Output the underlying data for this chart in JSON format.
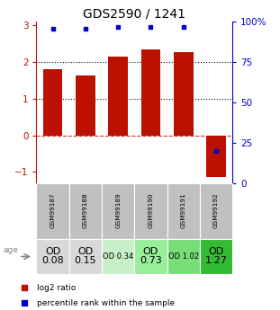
{
  "title": "GDS2590 / 1241",
  "samples": [
    "GSM99187",
    "GSM99188",
    "GSM99189",
    "GSM99190",
    "GSM99191",
    "GSM99192"
  ],
  "log2_ratios": [
    1.8,
    1.62,
    2.15,
    2.35,
    2.28,
    -1.15
  ],
  "percentile_y_vals": [
    2.9,
    2.9,
    2.95,
    2.95,
    2.95,
    -0.42
  ],
  "bar_color": "#bb1100",
  "dot_color": "#0000cc",
  "ylim": [
    -1.3,
    3.1
  ],
  "yticks_left": [
    -1,
    0,
    1,
    2,
    3
  ],
  "hline_vals": [
    0,
    1,
    2
  ],
  "hline_styles": [
    "--",
    ":",
    ":"
  ],
  "hline_colors": [
    "#cc3333",
    "#111111",
    "#111111"
  ],
  "od_texts": [
    "OD\n0.08",
    "OD\n0.15",
    "OD 0.34",
    "OD\n0.73",
    "OD 1.02",
    "OD\n1.27"
  ],
  "od_fontsize": [
    8,
    8,
    6,
    8,
    6,
    8
  ],
  "od_bg_colors": [
    "#d8d8d8",
    "#d8d8d8",
    "#c8f0c8",
    "#99ee99",
    "#77dd77",
    "#33bb33"
  ],
  "sample_bg_color": "#c0c0c0",
  "sample_border_color": "#ffffff",
  "age_label": "age",
  "legend_log2": "log2 ratio",
  "legend_pct": "percentile rank within the sample",
  "title_fontsize": 10,
  "bar_width": 0.6,
  "right_ticks_pct": [
    0,
    25,
    50,
    75,
    100
  ],
  "right_tick_labels": [
    "0",
    "25",
    "50",
    "75",
    "100%"
  ]
}
